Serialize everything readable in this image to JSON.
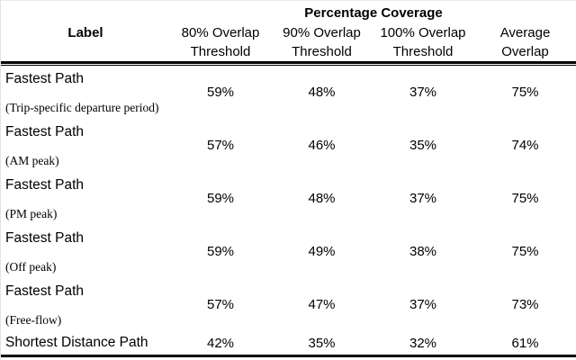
{
  "table": {
    "group_header": "Percentage Coverage",
    "columns": {
      "label_header": "Label",
      "value_headers": [
        {
          "line1": "80% Overlap",
          "line2": "Threshold"
        },
        {
          "line1": "90% Overlap",
          "line2": "Threshold"
        },
        {
          "line1": "100% Overlap",
          "line2": "Threshold"
        },
        {
          "line1": "Average",
          "line2": "Overlap"
        }
      ]
    },
    "rows": [
      {
        "label": "Fastest Path",
        "sublabel": "(Trip-specific departure period)",
        "values": [
          "59%",
          "48%",
          "37%",
          "75%"
        ]
      },
      {
        "label": "Fastest Path",
        "sublabel": "(AM peak)",
        "values": [
          "57%",
          "46%",
          "35%",
          "74%"
        ]
      },
      {
        "label": "Fastest Path",
        "sublabel": "(PM peak)",
        "values": [
          "59%",
          "48%",
          "37%",
          "75%"
        ]
      },
      {
        "label": "Fastest Path",
        "sublabel": "(Off peak)",
        "values": [
          "59%",
          "49%",
          "38%",
          "75%"
        ]
      },
      {
        "label": "Fastest Path",
        "sublabel": "(Free-flow)",
        "values": [
          "57%",
          "47%",
          "37%",
          "73%"
        ]
      },
      {
        "label": "Shortest Distance Path",
        "sublabel": "",
        "values": [
          "42%",
          "35%",
          "32%",
          "61%"
        ]
      }
    ]
  },
  "chart_data": {
    "type": "table",
    "title": "Percentage Coverage",
    "columns": [
      "Label",
      "80% Overlap Threshold",
      "90% Overlap Threshold",
      "100% Overlap Threshold",
      "Average Overlap"
    ],
    "rows": [
      [
        "Fastest Path (Trip-specific departure period)",
        59,
        48,
        37,
        75
      ],
      [
        "Fastest Path (AM peak)",
        57,
        46,
        35,
        74
      ],
      [
        "Fastest Path (PM peak)",
        59,
        48,
        37,
        75
      ],
      [
        "Fastest Path (Off peak)",
        59,
        49,
        38,
        75
      ],
      [
        "Fastest Path (Free-flow)",
        57,
        47,
        37,
        73
      ],
      [
        "Shortest Distance Path",
        42,
        35,
        32,
        61
      ]
    ],
    "units": "percent"
  },
  "colors": {
    "text": "#000000",
    "rule": "#000000",
    "background": "#ffffff"
  }
}
